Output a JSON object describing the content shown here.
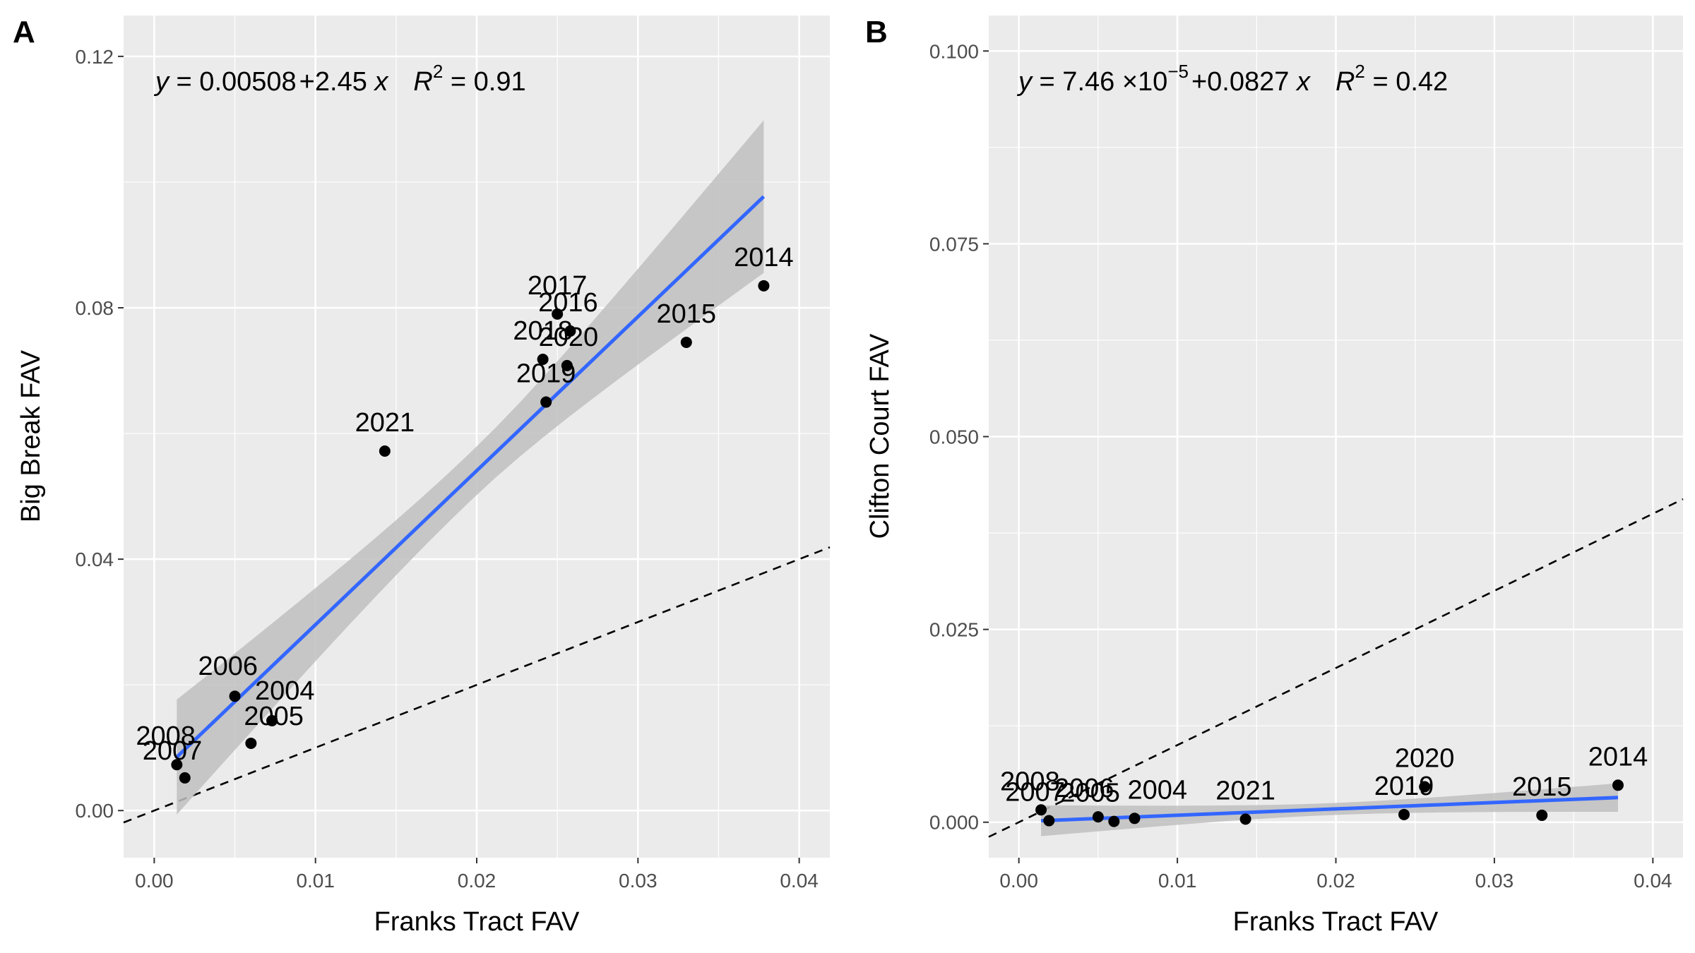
{
  "chart_data": [
    {
      "panel": "A",
      "type": "scatter",
      "xlabel": "Franks Tract FAV",
      "ylabel": "Big Break FAV",
      "xlim": [
        -0.0019,
        0.0419
      ],
      "ylim": [
        -0.0075,
        0.1265
      ],
      "xticks": [
        0.0,
        0.01,
        0.02,
        0.03,
        0.04
      ],
      "xtick_labels": [
        "0.00",
        "0.01",
        "0.02",
        "0.03",
        "0.04"
      ],
      "yticks": [
        0.0,
        0.04,
        0.08,
        0.12
      ],
      "ytick_labels": [
        "0.00",
        "0.04",
        "0.08",
        "0.12"
      ],
      "grid": true,
      "equation": {
        "y_sym": "y",
        "eq_a": " = 0.00508",
        "eq_b": "2.45 ",
        "x_sym": "x",
        "r_sym": "R",
        "r_sup": "2",
        "r_val": " = 0.91"
      },
      "points": [
        {
          "label": "2004",
          "x": 0.0073,
          "y": 0.0143
        },
        {
          "label": "2005",
          "x": 0.006,
          "y": 0.0107
        },
        {
          "label": "2006",
          "x": 0.005,
          "y": 0.0182
        },
        {
          "label": "2007",
          "x": 0.0019,
          "y": 0.0052
        },
        {
          "label": "2008",
          "x": 0.0014,
          "y": 0.0073
        },
        {
          "label": "2014",
          "x": 0.0378,
          "y": 0.0835
        },
        {
          "label": "2015",
          "x": 0.033,
          "y": 0.0745
        },
        {
          "label": "2016",
          "x": 0.0258,
          "y": 0.0763
        },
        {
          "label": "2017",
          "x": 0.025,
          "y": 0.079
        },
        {
          "label": "2018",
          "x": 0.0241,
          "y": 0.0718
        },
        {
          "label": "2019",
          "x": 0.0243,
          "y": 0.065
        },
        {
          "label": "2020",
          "x": 0.0256,
          "y": 0.0708
        },
        {
          "label": "2021",
          "x": 0.0143,
          "y": 0.0572
        }
      ],
      "fit": {
        "intercept": 0.00508,
        "slope": 2.45,
        "x_range": [
          0.0014,
          0.0378
        ],
        "color": "#3366FF"
      },
      "ci_band": {
        "x": [
          0.0014,
          0.0378
        ],
        "lower": [
          -0.0018,
          0.0855
        ],
        "upper": [
          0.0165,
          0.1098
        ],
        "color": "#bfbfbf"
      },
      "reference_line": {
        "slope": 1,
        "intercept": 0
      }
    },
    {
      "panel": "B",
      "type": "scatter",
      "xlabel": "Franks Tract FAV",
      "ylabel": "Clifton Court FAV",
      "xlim": [
        -0.0019,
        0.0419
      ],
      "ylim": [
        -0.0046,
        0.1046
      ],
      "xticks": [
        0.0,
        0.01,
        0.02,
        0.03,
        0.04
      ],
      "xtick_labels": [
        "0.00",
        "0.01",
        "0.02",
        "0.03",
        "0.04"
      ],
      "yticks": [
        0.0,
        0.025,
        0.05,
        0.075,
        0.1
      ],
      "ytick_labels": [
        "0.000",
        "0.025",
        "0.050",
        "0.075",
        "0.100"
      ],
      "grid": true,
      "equation": {
        "y_sym": "y",
        "eq_a": " = 7.46 ",
        "eq_ten": "10",
        "eq_exp": "−5",
        "eq_b": "0.0827 ",
        "x_sym": "x",
        "r_sym": "R",
        "r_sup": "2",
        "r_val": " = 0.42"
      },
      "points": [
        {
          "label": "2004",
          "x": 0.0073,
          "y": 0.0005
        },
        {
          "label": "2005",
          "x": 0.006,
          "y": 0.0001
        },
        {
          "label": "2006",
          "x": 0.005,
          "y": 0.0007
        },
        {
          "label": "2007",
          "x": 0.0019,
          "y": 0.0002
        },
        {
          "label": "2008",
          "x": 0.0014,
          "y": 0.0016
        },
        {
          "label": "2014",
          "x": 0.0378,
          "y": 0.0048
        },
        {
          "label": "2015",
          "x": 0.033,
          "y": 0.0009
        },
        {
          "label": "2019",
          "x": 0.0243,
          "y": 0.001
        },
        {
          "label": "2020",
          "x": 0.0256,
          "y": 0.0046
        },
        {
          "label": "2021",
          "x": 0.0143,
          "y": 0.0004
        }
      ],
      "fit": {
        "intercept": 7.46e-05,
        "slope": 0.0827,
        "x_range": [
          0.0014,
          0.0378
        ],
        "color": "#3366FF"
      },
      "ci_band": {
        "x": [
          0.0014,
          0.0378
        ],
        "lower": [
          -0.0018,
          0.0016
        ],
        "upper": [
          0.0022,
          0.0053
        ],
        "color": "#bfbfbf"
      },
      "reference_line": {
        "slope": 1,
        "intercept": 0
      }
    }
  ]
}
